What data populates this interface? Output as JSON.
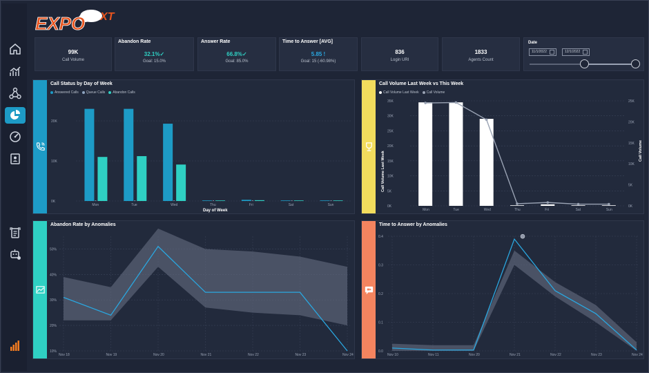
{
  "logo": {
    "text": "EXPO",
    "superscript": "XT"
  },
  "sidebar": {
    "items": [
      {
        "name": "home-icon",
        "active": false
      },
      {
        "name": "trend-chart-icon",
        "active": false
      },
      {
        "name": "network-icon",
        "active": false
      },
      {
        "name": "pie-chart-icon",
        "active": true
      },
      {
        "name": "gauge-icon",
        "active": false
      },
      {
        "name": "contact-book-icon",
        "active": false
      },
      {
        "name": "report-icon",
        "active": false
      },
      {
        "name": "bot-icon",
        "active": false
      },
      {
        "name": "brand-bars-icon",
        "active": false
      }
    ]
  },
  "kpis": [
    {
      "title": "",
      "value": "99K",
      "sub": "Call Volume",
      "tone": "white"
    },
    {
      "title": "Abandon Rate",
      "value": "32.1%✓",
      "sub": "Goal: 15.0%",
      "tone": "teal"
    },
    {
      "title": "Answer Rate",
      "value": "66.8%✓",
      "sub": "Goal: 85.0%",
      "tone": "teal"
    },
    {
      "title": "Time to Answer [AVG]",
      "value": "5.85 !",
      "sub": "Goal: 15 (-60.98%)",
      "tone": "blue"
    },
    {
      "title": "",
      "value": "836",
      "sub": "Login URI",
      "tone": "white"
    },
    {
      "title": "",
      "value": "1833",
      "sub": "Agents Count",
      "tone": "white"
    }
  ],
  "date_filter": {
    "title": "Date",
    "start": "11/1/2022",
    "end": "12/1/2022",
    "range_fraction": [
      0.55,
      1.0
    ]
  },
  "colors": {
    "teal": "#2fd0c3",
    "blue": "#1d9bc6",
    "yellow": "#f2dc5d",
    "orange": "#f4845f",
    "panel": "#222a3c"
  },
  "chart_data": [
    {
      "type": "bar",
      "title": "Call Status by Day of Week",
      "xlabel": "Day of Week",
      "categories": [
        "Mon",
        "Tue",
        "Wed",
        "Thu",
        "Fri",
        "Sat",
        "Sun"
      ],
      "yticks": [
        "20K",
        "10K",
        "0K"
      ],
      "ylim": [
        0,
        25000
      ],
      "series": [
        {
          "name": "Answered Calls",
          "color": "#1d9bc6",
          "values": [
            23000,
            23000,
            19300,
            100,
            300,
            100,
            100
          ]
        },
        {
          "name": "Queue Calls",
          "color": "#8ea4c0",
          "values": [
            100,
            100,
            100,
            0,
            0,
            0,
            0
          ]
        },
        {
          "name": "Abandon Calls",
          "color": "#2fd0c3",
          "values": [
            11000,
            11200,
            9100,
            50,
            200,
            50,
            50
          ]
        }
      ],
      "legend": "top-left"
    },
    {
      "type": "bar+line",
      "title": "Call Volume Last Week vs This Week",
      "ylabel": "Call Volume Last Week",
      "y2label": "Call Volume",
      "categories": [
        "Mon",
        "Tue",
        "Wed",
        "Thu",
        "Fri",
        "Sat",
        "Sun"
      ],
      "yticks": [
        "35K",
        "30K",
        "25K",
        "20K",
        "15K",
        "10K",
        "5K",
        "0K"
      ],
      "y2ticks": [
        "25K",
        "20K",
        "15K",
        "10K",
        "5K",
        "0K"
      ],
      "ylim": [
        0,
        35000
      ],
      "y2lim": [
        0,
        25000
      ],
      "series": [
        {
          "name": "Call Volume Last Week",
          "color": "#ffffff",
          "values": [
            34500,
            34500,
            29000,
            0,
            500,
            0,
            0
          ]
        },
        {
          "name": "Call Volume",
          "color": "#9aa3b4",
          "values": [
            24500,
            24600,
            20500,
            500,
            800,
            400,
            400
          ]
        }
      ],
      "legend": "top-left"
    },
    {
      "type": "line",
      "title": "Abandon Rate by Anomalies",
      "x": [
        "Nov 18",
        "Nov 19",
        "Nov 20",
        "Nov 21",
        "Nov 22",
        "Nov 23",
        "Nov 24"
      ],
      "yticks": [
        "50%",
        "40%",
        "30%",
        "20%",
        "10%"
      ],
      "ylim": [
        10,
        55
      ],
      "series": [
        {
          "name": "",
          "color": "#2aa7e0",
          "values": [
            31,
            24,
            51,
            33,
            33,
            33,
            10
          ]
        }
      ],
      "band_upper": [
        39,
        35,
        58,
        50,
        49,
        47,
        43
      ],
      "band_lower": [
        22,
        22,
        43,
        27,
        25,
        24,
        20
      ]
    },
    {
      "type": "line",
      "title": "Time to Answer by Anomalies",
      "x": [
        "Nov 10",
        "Nov 11",
        "Nov 20",
        "Nov 21",
        "Nov 22",
        "Nov 23",
        "Nov 24"
      ],
      "yticks": [
        "0.4",
        "0.3",
        "0.2",
        "0.1",
        "0.0"
      ],
      "ylim": [
        0,
        0.4
      ],
      "series": [
        {
          "name": "",
          "color": "#2aa7e0",
          "values": [
            0.01,
            0.003,
            0.003,
            0.39,
            0.21,
            0.13,
            0.003
          ]
        }
      ],
      "band_upper": [
        0.025,
        0.02,
        0.02,
        0.35,
        0.24,
        0.16,
        0.03
      ],
      "band_lower": [
        0.0,
        0.0,
        0.0,
        0.3,
        0.19,
        0.1,
        0.0
      ],
      "anomaly_index": 3
    }
  ]
}
